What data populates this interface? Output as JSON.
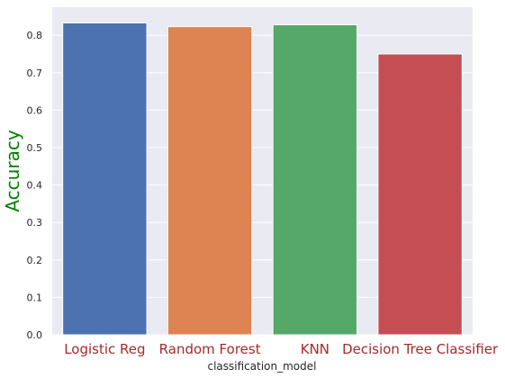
{
  "chart_data": {
    "type": "bar",
    "categories": [
      "Logistic Reg",
      "Random Forest",
      "KNN",
      "Decision Tree Classifier"
    ],
    "values": [
      0.833,
      0.823,
      0.828,
      0.75
    ],
    "bar_colors": [
      "#4c72b0",
      "#dd8452",
      "#55a868",
      "#c44e52"
    ],
    "title": "",
    "xlabel": "classification_model",
    "ylabel": "Accuracy",
    "ylim": [
      0,
      0.875
    ],
    "yticks": [
      "0.0",
      "0.1",
      "0.2",
      "0.3",
      "0.4",
      "0.5",
      "0.6",
      "0.7",
      "0.8"
    ],
    "grid": true,
    "ylabel_color": "#008000",
    "xtick_label_color": "#a52a2a",
    "plot_background": "#eaeaf2"
  }
}
